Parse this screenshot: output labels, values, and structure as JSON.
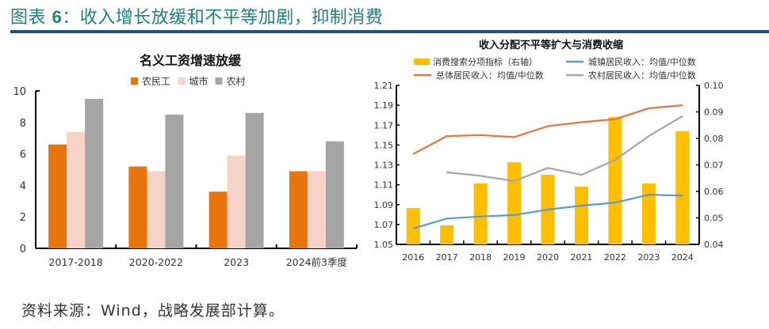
{
  "figure": {
    "title_prefix": "图表 ",
    "title_number": "6",
    "title_text": "：收入增长放缓和不平等加剧，抑制消费",
    "source": "资料来源：Wind，战略发展部计算。"
  },
  "colors": {
    "title": "#1f7f83",
    "rule": "#23507d",
    "migrant": "#e8740c",
    "urban": "#f7d2c7",
    "rural": "#a5a5a5",
    "bar_index": "#fdbf00",
    "overall": "#e9763c",
    "city": "#5b9bd5",
    "countryside": "#a5a5a5"
  },
  "chart_data": [
    {
      "type": "bar",
      "title": "名义工资增速放缓",
      "categories": [
        "2017-2018",
        "2020-2022",
        "2023",
        "2024前3季度"
      ],
      "series": [
        {
          "name": "农民工",
          "values": [
            6.6,
            5.2,
            3.6,
            4.9
          ]
        },
        {
          "name": "城市",
          "values": [
            7.4,
            4.9,
            5.9,
            4.9
          ]
        },
        {
          "name": "农村",
          "values": [
            9.5,
            8.5,
            8.6,
            6.8
          ]
        }
      ],
      "xlabel": "",
      "ylabel": "",
      "ylim": [
        0,
        10
      ],
      "yticks": [
        "0",
        "2",
        "4",
        "6",
        "8",
        "10"
      ],
      "legend_position": "top",
      "grid": false
    },
    {
      "type": "bar+line",
      "title": "收入分配不平等扩大与消费收缩",
      "categories": [
        "2016",
        "2017",
        "2018",
        "2019",
        "2020",
        "2021",
        "2022",
        "2023",
        "2024"
      ],
      "bars": {
        "name": "消费搜索分项指标（右轴）",
        "axis": "right",
        "values": [
          0.0537,
          0.0472,
          0.063,
          0.071,
          0.0663,
          0.0618,
          0.0881,
          0.063,
          0.0827
        ]
      },
      "series": [
        {
          "name": "总体居民收入：均值/中位数",
          "axis": "left",
          "values": [
            1.141,
            1.159,
            1.16,
            1.158,
            1.169,
            1.173,
            1.176,
            1.187,
            1.19
          ]
        },
        {
          "name": "城镇居民收入：均值/中位数",
          "axis": "left",
          "values": [
            1.066,
            1.076,
            1.078,
            1.0795,
            1.085,
            1.089,
            1.092,
            1.1,
            1.099
          ]
        },
        {
          "name": "农村居民收入：均值/中位数",
          "axis": "left",
          "values": [
            null,
            1.1225,
            1.119,
            1.1137,
            1.127,
            1.12,
            1.135,
            1.159,
            1.179
          ]
        }
      ],
      "ylim_left": [
        1.05,
        1.21
      ],
      "yticks_left": [
        "1.05",
        "1.07",
        "1.09",
        "1.11",
        "1.13",
        "1.15",
        "1.17",
        "1.19",
        "1.21"
      ],
      "ylim_right": [
        0.04,
        0.1
      ],
      "yticks_right": [
        "0.04",
        "0.05",
        "0.06",
        "0.07",
        "0.08",
        "0.09",
        "0.10"
      ],
      "legend_position": "top",
      "grid": false
    }
  ]
}
